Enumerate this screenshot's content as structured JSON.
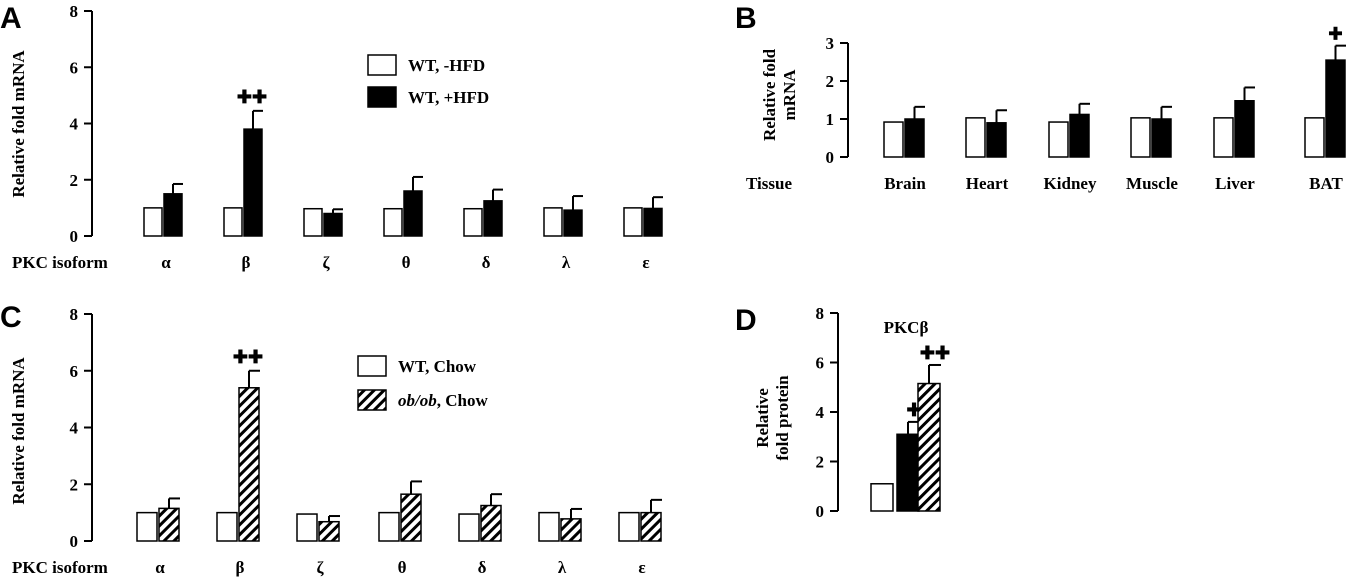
{
  "patterns": {
    "hatch": "hatch-pattern"
  },
  "chart_data": [
    {
      "panel": "A",
      "type": "bar",
      "xlabel": "PKC isoform",
      "ylabel": "Relative fold mRNA",
      "ylim": [
        0,
        8
      ],
      "yticks": [
        "0",
        "2",
        "4",
        "6",
        "8"
      ],
      "categories": [
        "α",
        "β",
        "ζ",
        "θ",
        "δ",
        "λ",
        "ε"
      ],
      "series": [
        {
          "name": "WT, -HFD",
          "fill": "#ffffff",
          "values": [
            1.0,
            1.0,
            0.97,
            0.97,
            0.97,
            1.0,
            1.0
          ],
          "errors": [
            0,
            0,
            0,
            0,
            0,
            0,
            0
          ]
        },
        {
          "name": "WT, +HFD",
          "fill": "#000000",
          "values": [
            1.5,
            3.8,
            0.8,
            1.6,
            1.25,
            0.92,
            0.98
          ],
          "errors": [
            0.35,
            0.65,
            0.15,
            0.5,
            0.4,
            0.5,
            0.4
          ]
        }
      ],
      "annotations": [
        {
          "category": 1,
          "series": 1,
          "text": "✚✚"
        }
      ]
    },
    {
      "panel": "B",
      "type": "bar",
      "xlabel": "Tissue",
      "ylabel": "Relative fold mRNA",
      "ylim": [
        0,
        3
      ],
      "yticks": [
        "0",
        "1",
        "2",
        "3"
      ],
      "categories": [
        "Brain",
        "Heart",
        "Kidney",
        "Muscle",
        "Liver",
        "BAT"
      ],
      "series": [
        {
          "name": "",
          "fill": "#ffffff",
          "values": [
            0.92,
            1.03,
            0.92,
            1.03,
            1.03,
            1.03
          ],
          "errors": [
            0,
            0,
            0,
            0,
            0,
            0
          ]
        },
        {
          "name": "",
          "fill": "#000000",
          "values": [
            1.0,
            0.9,
            1.12,
            1.0,
            1.48,
            2.55
          ],
          "errors": [
            0.32,
            0.33,
            0.28,
            0.32,
            0.35,
            0.38
          ]
        }
      ],
      "annotations": [
        {
          "category": 5,
          "series": 1,
          "text": "✚"
        }
      ]
    },
    {
      "panel": "C",
      "type": "bar",
      "xlabel": "PKC isoform",
      "ylabel": "Relative fold mRNA",
      "ylim": [
        0,
        8
      ],
      "yticks": [
        "0",
        "2",
        "4",
        "6",
        "8"
      ],
      "categories": [
        "α",
        "β",
        "ζ",
        "θ",
        "δ",
        "λ",
        "ε"
      ],
      "series": [
        {
          "name": "WT, Chow",
          "fill": "#ffffff",
          "values": [
            1.0,
            1.0,
            0.95,
            1.0,
            0.95,
            1.0,
            1.0
          ],
          "errors": [
            0,
            0,
            0,
            0,
            0,
            0,
            0
          ]
        },
        {
          "name_italic": "ob/ob",
          "name_rest": ", Chow",
          "fill": "hatch",
          "values": [
            1.15,
            5.4,
            0.68,
            1.65,
            1.25,
            0.78,
            1.0
          ],
          "errors": [
            0.35,
            0.6,
            0.2,
            0.45,
            0.4,
            0.35,
            0.45
          ]
        }
      ],
      "annotations": [
        {
          "category": 1,
          "series": 1,
          "text": "✚✚"
        }
      ]
    },
    {
      "panel": "D",
      "type": "bar",
      "title": "PKCβ",
      "ylabel": "Relative fold protein",
      "ylim": [
        0,
        8
      ],
      "yticks": [
        "0",
        "2",
        "4",
        "6",
        "8"
      ],
      "bars": [
        {
          "fill": "#ffffff",
          "value": 1.1,
          "error": 0
        },
        {
          "fill": "#000000",
          "value": 3.1,
          "error": 0.5,
          "annotation": "✚"
        },
        {
          "fill": "hatch",
          "value": 5.15,
          "error": 0.75,
          "annotation": "✚✚"
        }
      ]
    }
  ]
}
